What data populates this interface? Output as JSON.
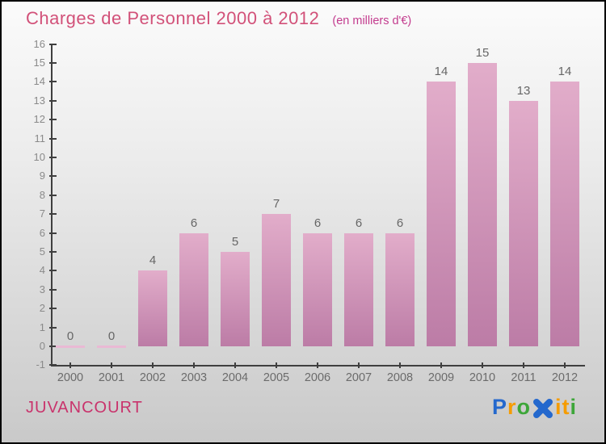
{
  "header": {
    "title": "Charges de Personnel 2000 à 2012",
    "subtitle": "(en milliers d'€)",
    "title_color": "#d25179",
    "subtitle_color": "#c33b8e"
  },
  "chart_data": {
    "type": "bar",
    "title": "Charges de Personnel 2000 à 2012",
    "unit_label": "(en milliers d'€)",
    "categories": [
      "2000",
      "2001",
      "2002",
      "2003",
      "2004",
      "2005",
      "2006",
      "2007",
      "2008",
      "2009",
      "2010",
      "2011",
      "2012"
    ],
    "values": [
      0,
      0,
      4,
      6,
      5,
      7,
      6,
      6,
      6,
      14,
      15,
      13,
      14
    ],
    "ylim": [
      -1,
      16
    ],
    "ytick_step": 1,
    "grid": false,
    "legend": null,
    "bar_color_top": "#e2adca",
    "bar_color_bottom": "#bc7ca6",
    "zero_bar_color": "#eab9d4",
    "axis_color": "#3f3f3f",
    "ytick_label_color": "#8a8a8a",
    "xtick_label_color": "#6b6b6b",
    "value_label_color": "#666666"
  },
  "footer": {
    "location": "JUVANCOURT",
    "location_color": "#c9336c",
    "logo_letters": [
      {
        "char": "P",
        "color": "#2468cd"
      },
      {
        "char": "r",
        "color": "#f59c00"
      },
      {
        "char": "o",
        "color": "#3da639"
      },
      {
        "char": "X",
        "color": "#2468cd",
        "mark": true
      },
      {
        "char": "i",
        "color": "#f59c00"
      },
      {
        "char": "t",
        "color": "#f59c00"
      },
      {
        "char": "i",
        "color": "#3da639"
      }
    ]
  }
}
